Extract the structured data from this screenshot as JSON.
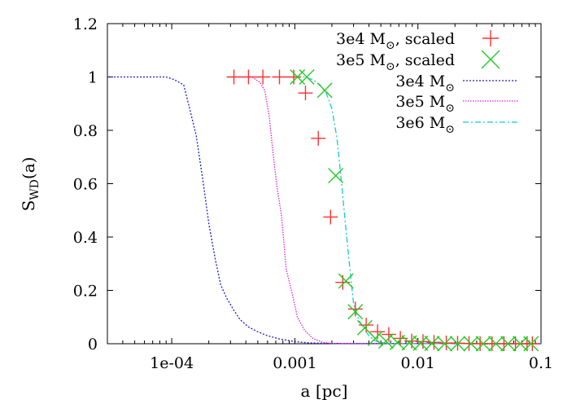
{
  "chart_data": {
    "type": "line",
    "title": "",
    "xlabel": "a [pc]",
    "ylabel": "S",
    "ylabel_sub": "WD",
    "ylabel_suffix": "(a)",
    "xscale": "log",
    "xlim": [
      3e-05,
      0.1
    ],
    "ylim": [
      0,
      1.2
    ],
    "grid": false,
    "legend_position": "top-right",
    "x_ticks": [
      {
        "value": 0.0001,
        "label": "1e-04"
      },
      {
        "value": 0.001,
        "label": "0.001"
      },
      {
        "value": 0.01,
        "label": "0.01"
      },
      {
        "value": 0.1,
        "label": "0.1"
      }
    ],
    "y_ticks": [
      {
        "value": 0,
        "label": "0"
      },
      {
        "value": 0.2,
        "label": "0.2"
      },
      {
        "value": 0.4,
        "label": "0.4"
      },
      {
        "value": 0.6,
        "label": "0.6"
      },
      {
        "value": 0.8,
        "label": "0.8"
      },
      {
        "value": 1.0,
        "label": "1"
      },
      {
        "value": 1.2,
        "label": "1.2"
      }
    ],
    "series": [
      {
        "name": "3e4 M_sun, scaled",
        "legend": {
          "pre": "3e4 M",
          "post": ", scaled"
        },
        "style": "plus",
        "color": "#ff3030",
        "x": [
          0.00032,
          0.00042,
          0.00055,
          0.00075,
          0.00098,
          0.00122,
          0.00155,
          0.00195,
          0.00245,
          0.0031,
          0.0038,
          0.0047,
          0.0058,
          0.0072,
          0.0089,
          0.011,
          0.0135,
          0.017,
          0.021,
          0.026,
          0.032,
          0.04,
          0.05,
          0.062,
          0.077,
          0.085
        ],
        "y": [
          1.0,
          1.0,
          1.0,
          1.0,
          1.0,
          0.94,
          0.77,
          0.475,
          0.23,
          0.13,
          0.07,
          0.045,
          0.035,
          0.02,
          0.01,
          0.008,
          0.005,
          0.003,
          0.002,
          0.001,
          0.0,
          0.0,
          0.0,
          0.0,
          0.0,
          0.0
        ]
      },
      {
        "name": "3e5 M_sun, scaled",
        "legend": {
          "pre": "3e5 M",
          "post": ", scaled"
        },
        "style": "cross",
        "color": "#22cc22",
        "x": [
          0.00105,
          0.00125,
          0.00175,
          0.00215,
          0.0026,
          0.0031,
          0.0037,
          0.0045,
          0.0055,
          0.0068,
          0.0085,
          0.0105,
          0.013,
          0.0165,
          0.021,
          0.027,
          0.034,
          0.043,
          0.054,
          0.068,
          0.083
        ],
        "y": [
          1.0,
          1.0,
          0.95,
          0.63,
          0.235,
          0.12,
          0.06,
          0.02,
          0.01,
          0.005,
          0.003,
          0.002,
          0.001,
          0.0,
          0.0,
          0.0,
          0.0,
          0.0,
          0.0,
          0.0,
          0.0
        ]
      },
      {
        "name": "3e4 M_sun",
        "legend": {
          "pre": "3e4 M",
          "post": ""
        },
        "style": "dotted",
        "color": "#1a1acc",
        "x": [
          3e-05,
          9e-05,
          0.000105,
          0.000125,
          0.00014,
          0.000158,
          0.000178,
          0.0002,
          0.000225,
          0.00025,
          0.00028,
          0.00032,
          0.00036,
          0.00042,
          0.0005,
          0.0006,
          0.00075,
          0.001,
          0.0013,
          0.002,
          0.1
        ],
        "y": [
          1.0,
          1.0,
          0.99,
          0.97,
          0.88,
          0.78,
          0.62,
          0.45,
          0.32,
          0.22,
          0.17,
          0.125,
          0.09,
          0.063,
          0.045,
          0.03,
          0.018,
          0.008,
          0.003,
          0.001,
          0.0
        ]
      },
      {
        "name": "3e5 M_sun",
        "legend": {
          "pre": "3e5 M",
          "post": ""
        },
        "style": "dotted-fine",
        "color": "#dd22dd",
        "x": [
          0.0003,
          0.00045,
          0.00052,
          0.00057,
          0.00062,
          0.00067,
          0.00072,
          0.00078,
          0.00085,
          0.00095,
          0.00105,
          0.0012,
          0.0014,
          0.0017,
          0.002,
          0.1
        ],
        "y": [
          1.0,
          1.0,
          0.98,
          0.95,
          0.85,
          0.7,
          0.58,
          0.48,
          0.28,
          0.19,
          0.1,
          0.05,
          0.02,
          0.005,
          0.001,
          0.0
        ]
      },
      {
        "name": "3e6 M_sun",
        "legend": {
          "pre": "3e6 M",
          "post": ""
        },
        "style": "dashdot",
        "color": "#11cccc",
        "x": [
          0.001,
          0.0012,
          0.0014,
          0.0016,
          0.0018,
          0.002,
          0.0022,
          0.0024,
          0.0026,
          0.0028,
          0.003,
          0.0033,
          0.0036,
          0.004,
          0.0045,
          0.005,
          0.006,
          0.1
        ],
        "y": [
          1.0,
          1.0,
          0.99,
          0.97,
          0.94,
          0.88,
          0.77,
          0.6,
          0.43,
          0.28,
          0.15,
          0.09,
          0.06,
          0.03,
          0.01,
          0.005,
          0.001,
          0.0
        ]
      }
    ]
  }
}
